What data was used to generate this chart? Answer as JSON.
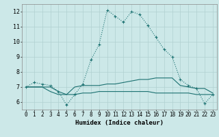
{
  "title": "",
  "xlabel": "Humidex (Indice chaleur)",
  "ylabel": "",
  "background_color": "#cce8e8",
  "line_color": "#1a7070",
  "xlim": [
    -0.5,
    23.5
  ],
  "ylim": [
    5.5,
    12.5
  ],
  "xticks": [
    0,
    1,
    2,
    3,
    4,
    5,
    6,
    7,
    8,
    9,
    10,
    11,
    12,
    13,
    14,
    15,
    16,
    17,
    18,
    19,
    20,
    21,
    22,
    23
  ],
  "yticks": [
    6,
    7,
    8,
    9,
    10,
    11,
    12
  ],
  "series": [
    {
      "x": [
        0,
        1,
        2,
        3,
        4,
        5,
        6,
        7,
        8,
        9,
        10,
        11,
        12,
        13,
        14,
        15,
        16,
        17,
        18,
        19,
        20,
        21,
        22,
        23
      ],
      "y": [
        7.0,
        7.3,
        7.2,
        7.1,
        6.7,
        5.8,
        6.5,
        7.2,
        8.8,
        9.8,
        12.1,
        11.7,
        11.3,
        12.0,
        11.8,
        11.1,
        10.3,
        9.5,
        9.0,
        7.5,
        7.1,
        6.9,
        5.9,
        6.5
      ],
      "style": "dotted",
      "marker": "+"
    },
    {
      "x": [
        0,
        1,
        2,
        3,
        4,
        5,
        6,
        7,
        8,
        9,
        10,
        11,
        12,
        13,
        14,
        15,
        16,
        17,
        18,
        19,
        20,
        21,
        22,
        23
      ],
      "y": [
        7.0,
        7.0,
        7.0,
        7.0,
        6.7,
        6.5,
        7.0,
        7.1,
        7.1,
        7.1,
        7.2,
        7.2,
        7.3,
        7.4,
        7.5,
        7.5,
        7.6,
        7.6,
        7.6,
        7.1,
        7.0,
        6.9,
        6.9,
        6.6
      ],
      "style": "solid",
      "marker": null
    },
    {
      "x": [
        0,
        1,
        2,
        3,
        4,
        5,
        6,
        7,
        8,
        9,
        10,
        11,
        12,
        13,
        14,
        15,
        16,
        17,
        18,
        19,
        20,
        21,
        22,
        23
      ],
      "y": [
        7.0,
        7.0,
        7.0,
        6.7,
        6.5,
        6.5,
        6.5,
        6.6,
        6.6,
        6.7,
        6.7,
        6.7,
        6.7,
        6.7,
        6.7,
        6.7,
        6.6,
        6.6,
        6.6,
        6.6,
        6.6,
        6.5,
        6.5,
        6.5
      ],
      "style": "solid",
      "marker": null
    }
  ],
  "grid_color": "#b0d0d0",
  "xlabel_fontsize": 6.5,
  "tick_fontsize": 5.5
}
